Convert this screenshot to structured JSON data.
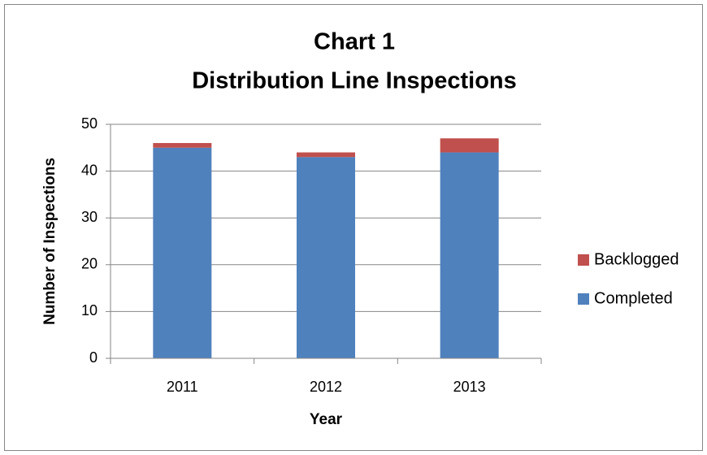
{
  "chart_data": {
    "type": "stacked_bar",
    "title": "Chart 1",
    "subtitle": "Distribution Line Inspections",
    "x_label": "Year",
    "y_label": "Number of Inspections",
    "categories": [
      "2011",
      "2012",
      "2013"
    ],
    "series": [
      {
        "name": "Completed",
        "color": "#4f81bd",
        "values": [
          45,
          43,
          44
        ]
      },
      {
        "name": "Backlogged",
        "color": "#c0504d",
        "values": [
          1,
          1,
          3
        ]
      }
    ],
    "ylim": [
      0,
      50
    ],
    "yticks": [
      0,
      10,
      20,
      30,
      40,
      50
    ],
    "grid": true,
    "legend": "right"
  }
}
